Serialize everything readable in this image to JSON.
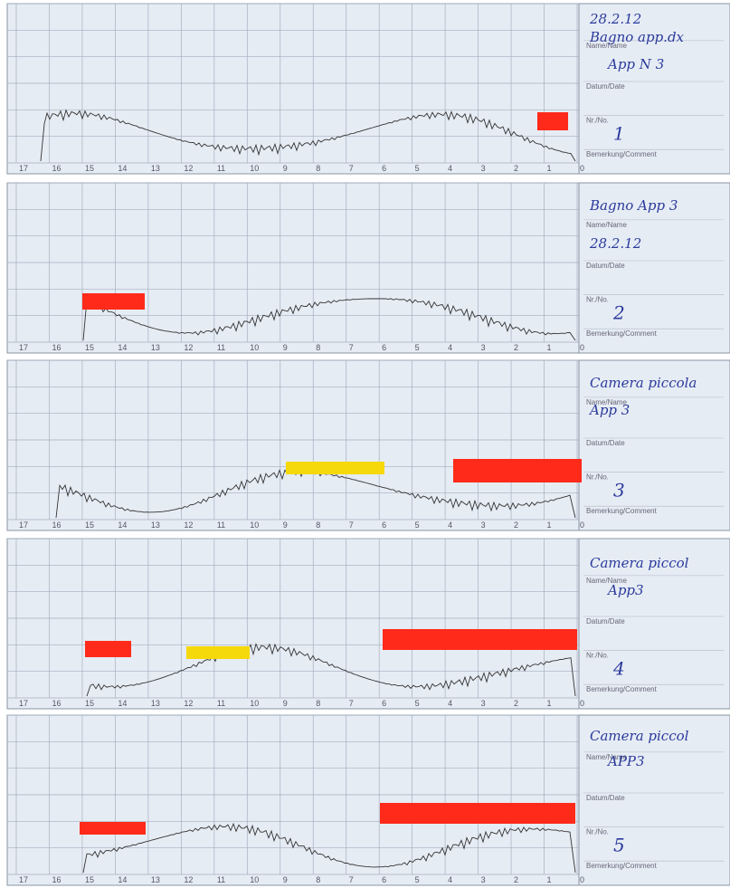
{
  "form_labels": {
    "name": "Name/Name",
    "date": "Datum/Date",
    "number": "Nr./No.",
    "comment": "Bemerkung/Comment"
  },
  "hour_scale": [
    "17",
    "16",
    "15",
    "14",
    "13",
    "12",
    "11",
    "10",
    "9",
    "8",
    "7",
    "6",
    "5",
    "4",
    "3",
    "2",
    "1",
    "0"
  ],
  "strips": [
    {
      "notes": [
        "28.2.12",
        "Bagno app.dx",
        "App N 3"
      ],
      "number": "1"
    },
    {
      "notes": [
        "Bagno App 3",
        "28.2.12"
      ],
      "number": "2"
    },
    {
      "notes": [
        "Camera piccola",
        "App 3"
      ],
      "number": "3"
    },
    {
      "notes": [
        "Camera piccol",
        "App3"
      ],
      "number": "4"
    },
    {
      "notes": [
        "Camera piccol",
        "APP3"
      ],
      "number": "5"
    }
  ]
}
